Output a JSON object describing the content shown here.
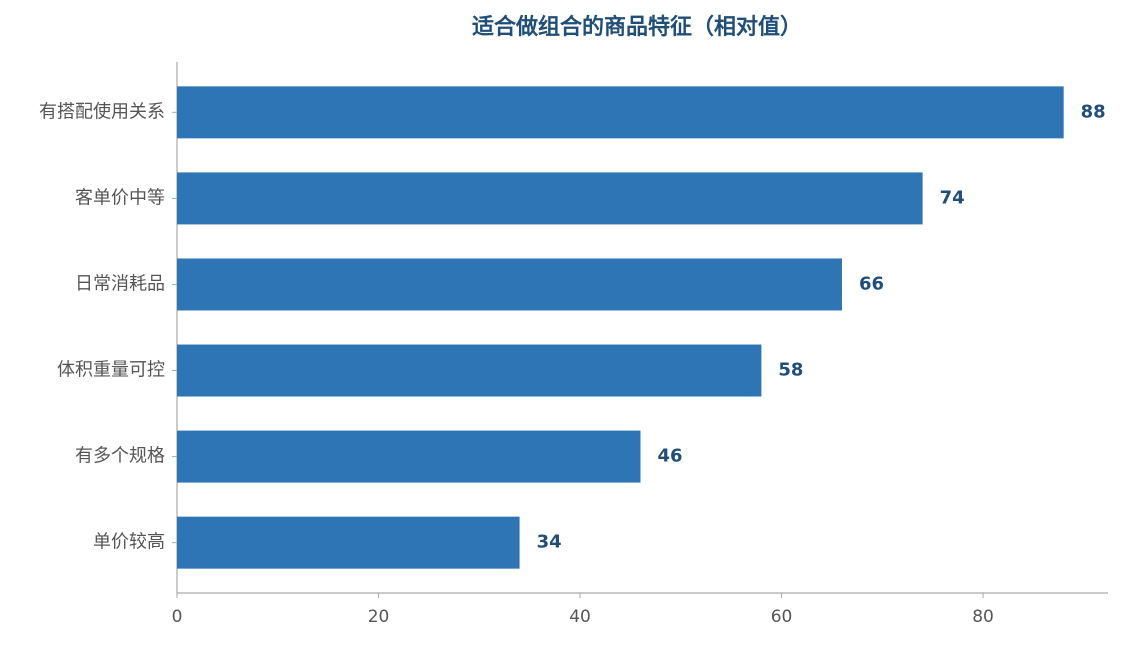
{
  "chart_data": {
    "type": "barh",
    "title": "适合做组合的商品特征（相对值）",
    "categories": [
      "有搭配使用关系",
      "客单价中等",
      "日常消耗品",
      "体积重量可控",
      "有多个规格",
      "单价较高"
    ],
    "values": [
      88,
      74,
      66,
      58,
      46,
      34
    ],
    "color": "#2e75b6",
    "xlim": [
      0,
      92.4
    ],
    "xticks": [
      0,
      20,
      40,
      60,
      80
    ],
    "grid": false
  }
}
